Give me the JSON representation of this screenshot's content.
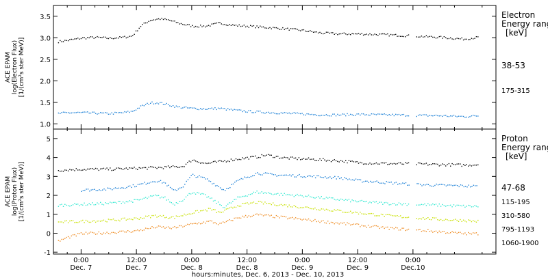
{
  "chart_data": [
    {
      "type": "scatter",
      "ylabel_lines": [
        "ACE EPAM",
        "log(Electron Flux)",
        "[1/(cm²s ster MeV)]"
      ],
      "ylim": [
        0.88,
        3.75
      ],
      "yticks": [
        "1.0",
        "1.5",
        "2.0",
        "2.5",
        "3.0",
        "3.5"
      ],
      "legend_title_lines": [
        "Electron",
        "Energy ranges",
        "[keV]"
      ],
      "x_time_range_hours": [
        -6,
        90
      ],
      "series": [
        {
          "name": "38-53",
          "color": "#000000",
          "points": [
            [
              -5,
              2.92
            ],
            [
              -3,
              2.95
            ],
            [
              0,
              3.0
            ],
            [
              3,
              3.02
            ],
            [
              6,
              3.0
            ],
            [
              9,
              3.02
            ],
            [
              11,
              3.05
            ],
            [
              13,
              3.3
            ],
            [
              15,
              3.42
            ],
            [
              17,
              3.45
            ],
            [
              19,
              3.42
            ],
            [
              21,
              3.35
            ],
            [
              24,
              3.28
            ],
            [
              27,
              3.28
            ],
            [
              30,
              3.35
            ],
            [
              33,
              3.3
            ],
            [
              36,
              3.28
            ],
            [
              40,
              3.25
            ],
            [
              44,
              3.22
            ],
            [
              48,
              3.18
            ],
            [
              52,
              3.12
            ],
            [
              56,
              3.1
            ],
            [
              60,
              3.1
            ],
            [
              66,
              3.08
            ],
            [
              72,
              3.05
            ],
            [
              78,
              3.02
            ],
            [
              83,
              2.98
            ],
            [
              86,
              3.02
            ]
          ]
        },
        {
          "name": "175-315",
          "color": "#1a7fd6",
          "points": [
            [
              -5,
              1.25
            ],
            [
              -3,
              1.27
            ],
            [
              0,
              1.27
            ],
            [
              3,
              1.26
            ],
            [
              6,
              1.25
            ],
            [
              9,
              1.27
            ],
            [
              11,
              1.3
            ],
            [
              13,
              1.42
            ],
            [
              15,
              1.5
            ],
            [
              17,
              1.5
            ],
            [
              19,
              1.45
            ],
            [
              21,
              1.4
            ],
            [
              24,
              1.37
            ],
            [
              27,
              1.36
            ],
            [
              30,
              1.37
            ],
            [
              33,
              1.33
            ],
            [
              36,
              1.3
            ],
            [
              40,
              1.28
            ],
            [
              44,
              1.26
            ],
            [
              48,
              1.24
            ],
            [
              52,
              1.22
            ],
            [
              56,
              1.22
            ],
            [
              60,
              1.23
            ],
            [
              66,
              1.22
            ],
            [
              72,
              1.21
            ],
            [
              78,
              1.2
            ],
            [
              83,
              1.18
            ],
            [
              86,
              1.2
            ]
          ]
        }
      ]
    },
    {
      "type": "scatter",
      "ylabel_lines": [
        "ACE EPAM",
        "log(Proton Flux)",
        "[1/(cm²s ster MeV)]"
      ],
      "ylim": [
        -1.1,
        5.5
      ],
      "yticks": [
        "-1",
        "0",
        "1",
        "2",
        "3",
        "4",
        "5"
      ],
      "legend_title_lines": [
        "Proton",
        "Energy ranges",
        "[keV]"
      ],
      "x_time_range_hours": [
        -6,
        90
      ],
      "x_ticks": [
        {
          "time": "0:00",
          "date": "Dec. 7"
        },
        {
          "time": "12:00",
          "date": "Dec. 7"
        },
        {
          "time": "0:00",
          "date": "Dec. 8"
        },
        {
          "time": "12:00",
          "date": "Dec. 8"
        },
        {
          "time": "0:00",
          "date": "Dec. 9"
        },
        {
          "time": "12:00",
          "date": "Dec. 9"
        },
        {
          "time": "0:00",
          "date": "Dec.10"
        }
      ],
      "xlabel": "hours:minutes, Dec. 6, 2013 - Dec. 10, 2013",
      "series": [
        {
          "name": "47-68",
          "color": "#000000",
          "points": [
            [
              -5,
              3.35
            ],
            [
              0,
              3.4
            ],
            [
              6,
              3.4
            ],
            [
              12,
              3.45
            ],
            [
              18,
              3.5
            ],
            [
              22,
              3.55
            ],
            [
              24,
              3.9
            ],
            [
              27,
              3.7
            ],
            [
              30,
              3.8
            ],
            [
              34,
              3.95
            ],
            [
              38,
              4.05
            ],
            [
              40,
              4.15
            ],
            [
              44,
              4.0
            ],
            [
              48,
              3.95
            ],
            [
              52,
              3.9
            ],
            [
              56,
              3.85
            ],
            [
              60,
              3.75
            ],
            [
              66,
              3.7
            ],
            [
              72,
              3.68
            ],
            [
              78,
              3.65
            ],
            [
              83,
              3.62
            ],
            [
              86,
              3.65
            ]
          ]
        },
        {
          "name": "115-195",
          "color": "#1a7fd6",
          "points": [
            [
              0,
              2.3
            ],
            [
              6,
              2.35
            ],
            [
              12,
              2.55
            ],
            [
              16,
              2.8
            ],
            [
              18,
              2.7
            ],
            [
              20,
              2.25
            ],
            [
              22,
              2.5
            ],
            [
              24,
              3.1
            ],
            [
              27,
              2.9
            ],
            [
              29,
              2.6
            ],
            [
              31,
              2.3
            ],
            [
              34,
              2.8
            ],
            [
              38,
              3.2
            ],
            [
              42,
              3.1
            ],
            [
              48,
              3.05
            ],
            [
              52,
              3.0
            ],
            [
              56,
              2.95
            ],
            [
              60,
              2.8
            ],
            [
              66,
              2.7
            ],
            [
              72,
              2.6
            ],
            [
              78,
              2.55
            ],
            [
              83,
              2.52
            ],
            [
              86,
              2.5
            ]
          ]
        },
        {
          "name": "310-580",
          "color": "#2ee8d0",
          "points": [
            [
              -5,
              1.5
            ],
            [
              0,
              1.55
            ],
            [
              6,
              1.6
            ],
            [
              12,
              1.75
            ],
            [
              16,
              2.0
            ],
            [
              18,
              1.9
            ],
            [
              20,
              1.55
            ],
            [
              22,
              1.8
            ],
            [
              24,
              2.2
            ],
            [
              27,
              2.0
            ],
            [
              29,
              1.7
            ],
            [
              31,
              1.4
            ],
            [
              34,
              1.9
            ],
            [
              38,
              2.2
            ],
            [
              42,
              2.1
            ],
            [
              48,
              2.0
            ],
            [
              52,
              1.9
            ],
            [
              56,
              1.8
            ],
            [
              60,
              1.7
            ],
            [
              66,
              1.6
            ],
            [
              72,
              1.55
            ],
            [
              78,
              1.5
            ],
            [
              83,
              1.45
            ],
            [
              86,
              1.45
            ]
          ]
        },
        {
          "name": "795-1193",
          "color": "#c8e000",
          "points": [
            [
              -5,
              0.6
            ],
            [
              0,
              0.65
            ],
            [
              6,
              0.7
            ],
            [
              12,
              0.8
            ],
            [
              16,
              0.95
            ],
            [
              20,
              0.85
            ],
            [
              24,
              1.1
            ],
            [
              28,
              1.3
            ],
            [
              30,
              1.1
            ],
            [
              34,
              1.5
            ],
            [
              38,
              1.65
            ],
            [
              42,
              1.55
            ],
            [
              48,
              1.4
            ],
            [
              52,
              1.3
            ],
            [
              56,
              1.2
            ],
            [
              60,
              1.1
            ],
            [
              66,
              0.95
            ],
            [
              72,
              0.85
            ],
            [
              78,
              0.75
            ],
            [
              83,
              0.7
            ],
            [
              86,
              0.65
            ]
          ]
        },
        {
          "name": "1060-1900",
          "color": "#ee8a20",
          "points": [
            [
              -5,
              -0.4
            ],
            [
              -3,
              -0.2
            ],
            [
              0,
              0.0
            ],
            [
              6,
              0.05
            ],
            [
              12,
              0.15
            ],
            [
              16,
              0.35
            ],
            [
              20,
              0.3
            ],
            [
              24,
              0.5
            ],
            [
              28,
              0.65
            ],
            [
              30,
              0.5
            ],
            [
              34,
              0.85
            ],
            [
              38,
              1.0
            ],
            [
              42,
              0.9
            ],
            [
              48,
              0.75
            ],
            [
              52,
              0.65
            ],
            [
              56,
              0.55
            ],
            [
              60,
              0.45
            ],
            [
              66,
              0.3
            ],
            [
              72,
              0.2
            ],
            [
              78,
              0.1
            ],
            [
              83,
              0.0
            ],
            [
              86,
              0.0
            ]
          ]
        }
      ]
    }
  ]
}
